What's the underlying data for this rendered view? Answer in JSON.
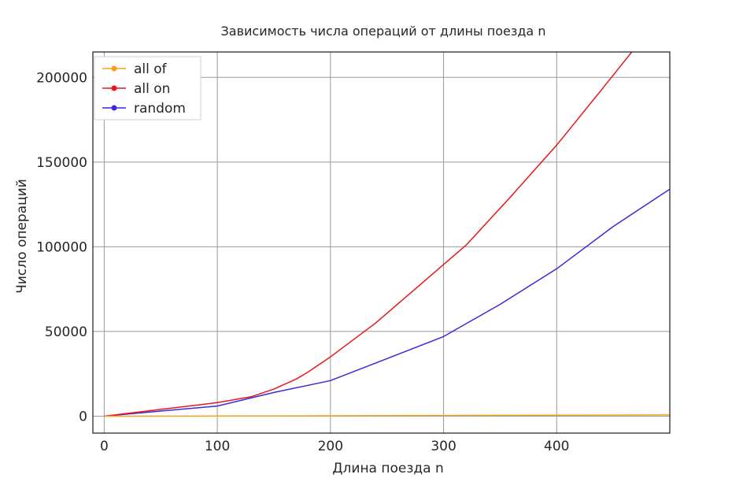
{
  "chart_data": {
    "type": "line",
    "title": "Зависимость числа операций от длины поезда n",
    "xlabel": "Длина поезда n",
    "ylabel": "Число операций",
    "xlim": [
      -10,
      500
    ],
    "ylim": [
      -10000,
      215000
    ],
    "xticks": [
      0,
      100,
      200,
      300,
      400
    ],
    "yticks": [
      0,
      50000,
      100000,
      150000,
      200000
    ],
    "grid": true,
    "legend_position": "top-left",
    "series": [
      {
        "name": "all of",
        "color": "#f5a01a",
        "x": [
          0,
          100,
          200,
          300,
          400,
          500
        ],
        "y": [
          0,
          100,
          250,
          420,
          600,
          750
        ]
      },
      {
        "name": "all on",
        "color": "#e8161b",
        "x": [
          0,
          50,
          100,
          130,
          150,
          170,
          180,
          200,
          240,
          280,
          320,
          360,
          400,
          440,
          470
        ],
        "y": [
          0,
          4000,
          8000,
          11500,
          16000,
          22000,
          26000,
          35000,
          55000,
          78000,
          101000,
          130000,
          160000,
          193000,
          218000
        ]
      },
      {
        "name": "random",
        "color": "#3a2ad8",
        "x": [
          0,
          50,
          100,
          150,
          200,
          250,
          300,
          350,
          400,
          450,
          500
        ],
        "y": [
          0,
          3000,
          6000,
          14000,
          21000,
          34000,
          47000,
          66000,
          87000,
          112000,
          134000
        ]
      }
    ]
  }
}
